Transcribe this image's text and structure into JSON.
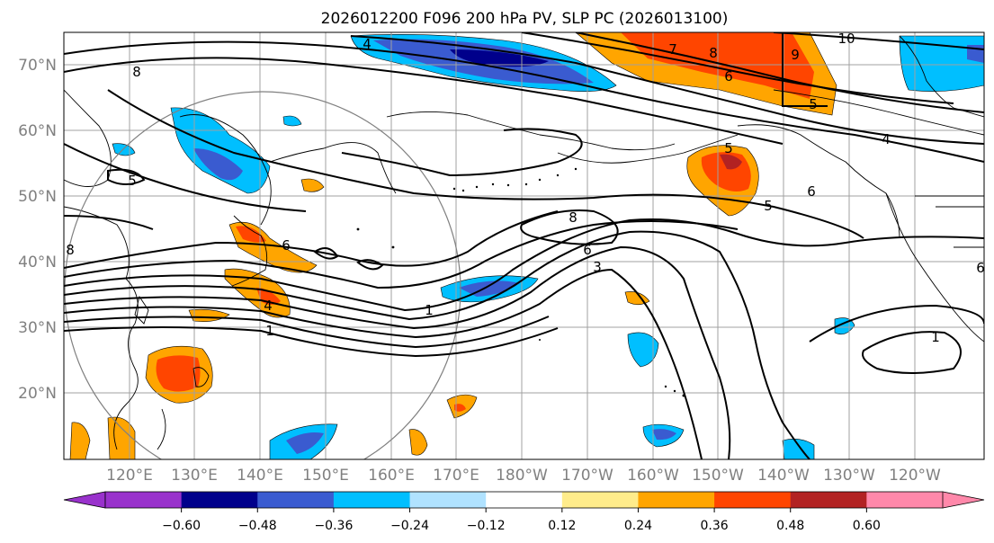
{
  "title": "2026012200 F096 200 hPa PV, SLP PC (2026013100)",
  "map": {
    "lat_labels": [
      "70°N",
      "60°N",
      "50°N",
      "40°N",
      "30°N",
      "20°N"
    ],
    "lon_labels": [
      "120°E",
      "130°E",
      "140°E",
      "150°E",
      "160°E",
      "170°E",
      "180°W",
      "170°W",
      "160°W",
      "150°W",
      "140°W",
      "130°W",
      "120°W"
    ],
    "extent": {
      "lon_min": 110,
      "lon_max": 251,
      "lat_min": 10,
      "lat_max": 75
    }
  },
  "colorbar": {
    "levels": [
      -0.72,
      -0.6,
      -0.48,
      -0.36,
      -0.24,
      -0.12,
      0.12,
      0.24,
      0.36,
      0.48,
      0.6,
      0.72
    ],
    "tick_labels": [
      "−0.60",
      "−0.48",
      "−0.36",
      "−0.24",
      "−0.12",
      "0.12",
      "0.24",
      "0.36",
      "0.48",
      "0.60"
    ],
    "under_color": "#9932cc",
    "over_color": "#ff88aa",
    "colors": [
      "#9932cc",
      "#00008b",
      "#3a5bd0",
      "#00bfff",
      "#b0e2ff",
      "#ffffff",
      "#ffec8b",
      "#ffa500",
      "#ff4500",
      "#b22222",
      "#ff88aa"
    ]
  },
  "contour_labels": [
    "4",
    "7",
    "8",
    "9",
    "10",
    "6",
    "5",
    "8",
    "4",
    "6",
    "5",
    "8",
    "6",
    "5",
    "3",
    "6",
    "1",
    "1",
    "4",
    "1",
    "8",
    "6",
    "5"
  ]
}
